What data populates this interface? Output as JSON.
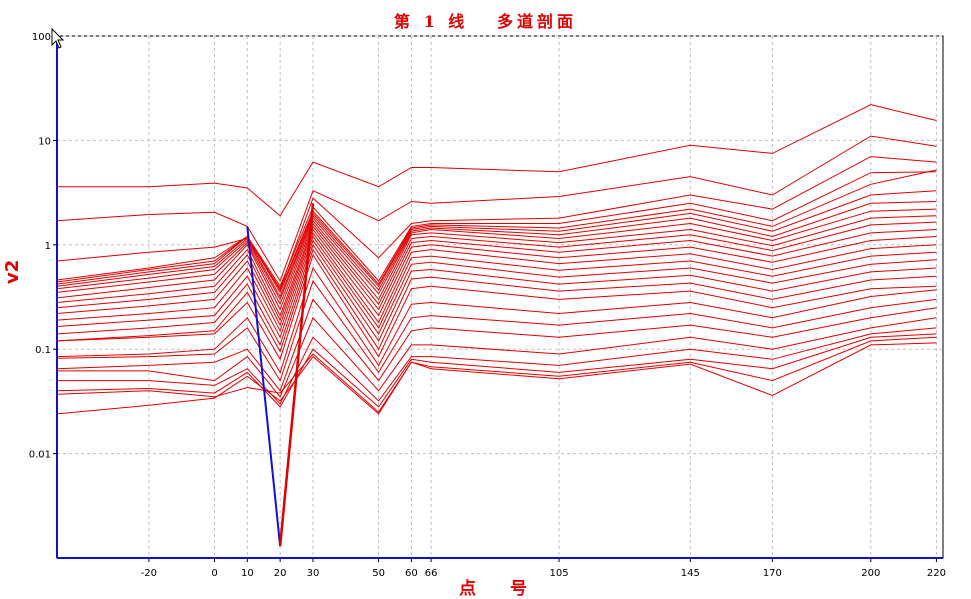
{
  "chart_data": {
    "type": "line",
    "title": "第 1 线   多道剖面",
    "xlabel": "点  号",
    "ylabel": "v2",
    "yscale": "log",
    "ylim": [
      0.001,
      100
    ],
    "xlim": [
      -48,
      222
    ],
    "grid": true,
    "x_ticks": [
      -20,
      0,
      10,
      20,
      30,
      50,
      60,
      66,
      105,
      145,
      170,
      200,
      220
    ],
    "y_ticks": [
      0.01,
      0.1,
      1,
      10,
      100
    ],
    "y_tick_labels": [
      "0.01",
      "0.1",
      "1",
      "10",
      "100"
    ],
    "x": [
      -48,
      -20,
      0,
      10,
      20,
      30,
      50,
      60,
      66,
      105,
      145,
      170,
      200,
      220
    ],
    "series_color": "#e00000",
    "highlight_color": "#1010d0",
    "series": [
      {
        "values": [
          3.6,
          3.6,
          3.9,
          3.5,
          1.9,
          6.2,
          3.6,
          5.5,
          5.5,
          5.0,
          9.0,
          7.5,
          22.0,
          15.5
        ]
      },
      {
        "values": [
          1.7,
          1.95,
          2.05,
          1.5,
          0.45,
          3.3,
          1.7,
          2.6,
          2.5,
          2.9,
          4.5,
          3.0,
          11.0,
          8.8
        ]
      },
      {
        "values": [
          0.7,
          0.85,
          0.95,
          1.15,
          0.38,
          2.8,
          0.75,
          1.6,
          1.7,
          1.8,
          3.0,
          2.2,
          7.0,
          6.2
        ]
      },
      {
        "values": [
          0.46,
          0.6,
          0.75,
          1.2,
          0.4,
          2.3,
          0.45,
          1.5,
          1.6,
          1.6,
          2.5,
          1.7,
          4.9,
          5.0
        ]
      },
      {
        "values": [
          0.44,
          0.58,
          0.7,
          1.2,
          0.37,
          2.1,
          0.42,
          1.45,
          1.55,
          1.45,
          2.2,
          1.5,
          3.8,
          5.2
        ]
      },
      {
        "values": [
          0.42,
          0.55,
          0.66,
          1.2,
          0.35,
          2.0,
          0.4,
          1.4,
          1.5,
          1.35,
          2.0,
          1.35,
          3.0,
          3.3
        ]
      },
      {
        "values": [
          0.4,
          0.52,
          0.62,
          1.15,
          0.32,
          1.9,
          0.37,
          1.35,
          1.45,
          1.25,
          1.8,
          1.2,
          2.5,
          2.6
        ]
      },
      {
        "values": [
          0.38,
          0.48,
          0.58,
          1.1,
          0.3,
          1.8,
          0.34,
          1.3,
          1.4,
          1.15,
          1.6,
          1.1,
          2.1,
          2.2
        ]
      },
      {
        "values": [
          0.35,
          0.44,
          0.52,
          1.05,
          0.27,
          1.7,
          0.3,
          1.25,
          1.3,
          1.05,
          1.4,
          0.98,
          1.8,
          1.9
        ]
      },
      {
        "values": [
          0.31,
          0.39,
          0.46,
          1.0,
          0.24,
          1.6,
          0.27,
          1.15,
          1.2,
          0.95,
          1.25,
          0.88,
          1.55,
          1.65
        ]
      },
      {
        "values": [
          0.28,
          0.34,
          0.4,
          0.9,
          0.21,
          1.5,
          0.24,
          1.05,
          1.1,
          0.85,
          1.1,
          0.78,
          1.3,
          1.4
        ]
      },
      {
        "values": [
          0.25,
          0.3,
          0.35,
          0.8,
          0.19,
          1.4,
          0.21,
          0.95,
          1.0,
          0.75,
          0.95,
          0.68,
          1.1,
          1.2
        ]
      },
      {
        "values": [
          0.22,
          0.26,
          0.3,
          0.7,
          0.17,
          1.3,
          0.18,
          0.85,
          0.9,
          0.66,
          0.82,
          0.58,
          0.92,
          1.0
        ]
      },
      {
        "values": [
          0.19,
          0.22,
          0.25,
          0.6,
          0.15,
          1.2,
          0.16,
          0.75,
          0.78,
          0.57,
          0.7,
          0.5,
          0.78,
          0.85
        ]
      },
      {
        "values": [
          0.165,
          0.19,
          0.21,
          0.5,
          0.13,
          1.1,
          0.14,
          0.65,
          0.68,
          0.49,
          0.6,
          0.43,
          0.65,
          0.72
        ]
      },
      {
        "values": [
          0.14,
          0.16,
          0.18,
          0.42,
          0.11,
          1.0,
          0.12,
          0.56,
          0.58,
          0.42,
          0.51,
          0.36,
          0.55,
          0.6
        ]
      },
      {
        "values": [
          0.12,
          0.135,
          0.15,
          0.35,
          0.095,
          0.9,
          0.1,
          0.47,
          0.49,
          0.36,
          0.43,
          0.3,
          0.46,
          0.5
        ]
      },
      {
        "values": [
          0.12,
          0.13,
          0.14,
          0.28,
          0.08,
          0.8,
          0.085,
          0.38,
          0.4,
          0.3,
          0.36,
          0.25,
          0.38,
          0.4
        ]
      },
      {
        "values": [
          0.085,
          0.09,
          0.1,
          0.2,
          0.06,
          0.6,
          0.07,
          0.27,
          0.28,
          0.22,
          0.28,
          0.2,
          0.32,
          0.37
        ]
      },
      {
        "values": [
          0.082,
          0.085,
          0.09,
          0.16,
          0.05,
          0.45,
          0.06,
          0.2,
          0.21,
          0.17,
          0.22,
          0.16,
          0.25,
          0.3
        ]
      },
      {
        "values": [
          0.065,
          0.07,
          0.075,
          0.1,
          0.04,
          0.3,
          0.05,
          0.15,
          0.16,
          0.13,
          0.17,
          0.13,
          0.2,
          0.25
        ]
      },
      {
        "values": [
          0.062,
          0.062,
          0.05,
          0.085,
          0.035,
          0.2,
          0.04,
          0.11,
          0.11,
          0.09,
          0.13,
          0.1,
          0.16,
          0.2
        ]
      },
      {
        "values": [
          0.05,
          0.05,
          0.045,
          0.065,
          0.03,
          0.13,
          0.032,
          0.085,
          0.085,
          0.07,
          0.1,
          0.08,
          0.14,
          0.16
        ]
      },
      {
        "values": [
          0.04,
          0.042,
          0.038,
          0.06,
          0.028,
          0.1,
          0.028,
          0.08,
          0.075,
          0.06,
          0.08,
          0.065,
          0.13,
          0.14
        ]
      },
      {
        "values": [
          0.037,
          0.04,
          0.035,
          0.043,
          0.038,
          0.09,
          0.025,
          0.075,
          0.068,
          0.055,
          0.075,
          0.05,
          0.12,
          0.13
        ]
      },
      {
        "values": [
          0.024,
          0.029,
          0.034,
          0.055,
          0.032,
          0.085,
          0.024,
          0.075,
          0.065,
          0.052,
          0.072,
          0.036,
          0.11,
          0.115
        ]
      }
    ],
    "highlight_segment": {
      "x": [
        10,
        20,
        30
      ],
      "values": [
        1.5,
        0.0013,
        2.5
      ]
    }
  }
}
